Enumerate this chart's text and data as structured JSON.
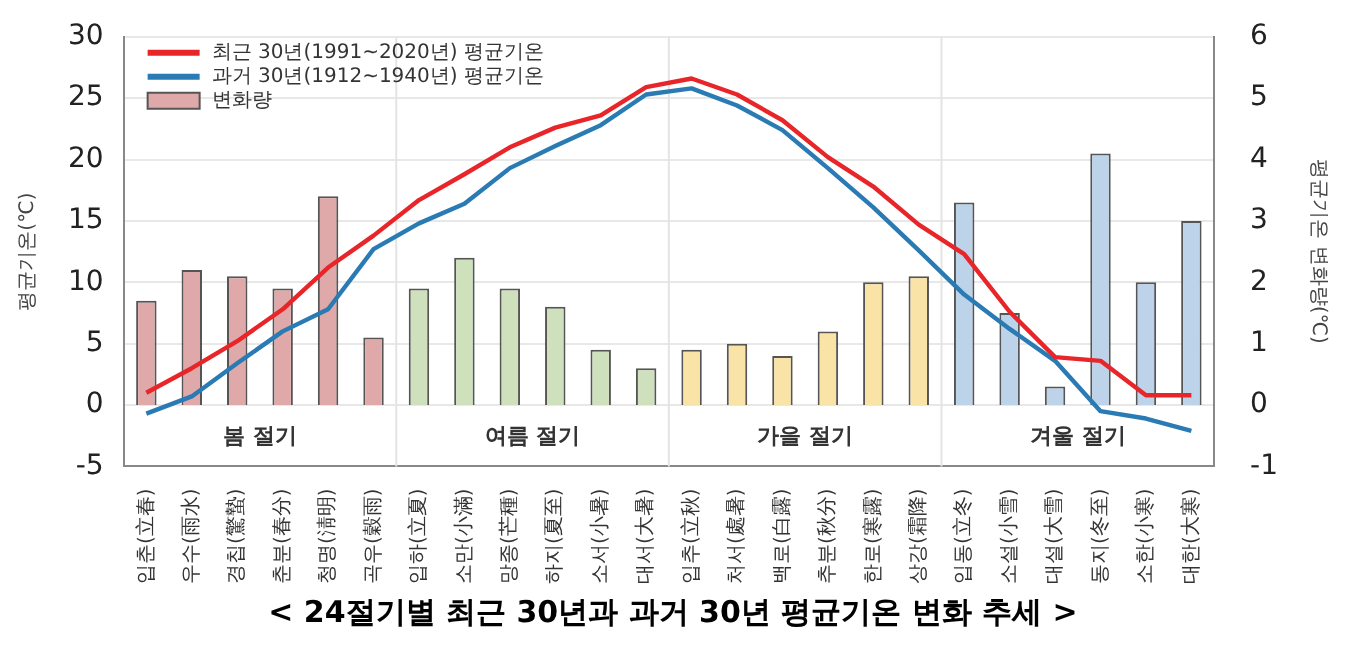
{
  "chart_data": {
    "type": "line",
    "title": "< 24절기별 최근 30년과 과거 30년 평균기온 변화 추세 >",
    "ylabel": "평균기온(℃)",
    "y2label": "평균기온 변화량(℃)",
    "categories": [
      "입춘(立春)",
      "우수(雨水)",
      "경칩(驚蟄)",
      "춘분(春分)",
      "청명(淸明)",
      "곡우(穀雨)",
      "입하(立夏)",
      "소만(小滿)",
      "망종(芒種)",
      "하지(夏至)",
      "소서(小暑)",
      "대서(大暑)",
      "입추(立秋)",
      "처서(處暑)",
      "백로(白露)",
      "추분(秋分)",
      "한로(寒露)",
      "상강(霜降)",
      "입동(立冬)",
      "소설(小雪)",
      "대설(大雪)",
      "동지(冬至)",
      "소한(小寒)",
      "대한(大寒)"
    ],
    "series": [
      {
        "name": "최근 30년(1991~2020년) 평균기온",
        "color": "#e8262a",
        "values": [
          1.0,
          3.0,
          5.2,
          7.8,
          11.2,
          13.8,
          16.7,
          18.8,
          21.0,
          22.6,
          23.6,
          25.9,
          26.6,
          25.3,
          23.2,
          20.2,
          17.8,
          14.7,
          12.3,
          7.6,
          3.9,
          3.6,
          0.8,
          0.8
        ]
      },
      {
        "name": "과거 30년(1912~1940년) 평균기온",
        "color": "#2a7bb4",
        "values": [
          -0.7,
          0.7,
          3.4,
          6.0,
          7.8,
          12.7,
          14.8,
          16.4,
          19.3,
          21.1,
          22.8,
          25.3,
          25.8,
          24.4,
          22.4,
          19.3,
          16.1,
          12.6,
          9.0,
          6.2,
          3.6,
          -0.5,
          -1.1,
          -2.1
        ]
      },
      {
        "name": "변화량",
        "type": "bar",
        "axis": "y2",
        "colors": [
          "#e0a9a9",
          "#e0a9a9",
          "#e0a9a9",
          "#e0a9a9",
          "#e0a9a9",
          "#e0a9a9",
          "#cfe0bd",
          "#cfe0bd",
          "#cfe0bd",
          "#cfe0bd",
          "#cfe0bd",
          "#cfe0bd",
          "#f9e3a6",
          "#f9e3a6",
          "#f9e3a6",
          "#f9e3a6",
          "#f9e3a6",
          "#f9e3a6",
          "#bcd3ea",
          "#bcd3ea",
          "#bcd3ea",
          "#bcd3ea",
          "#bcd3ea",
          "#bcd3ea"
        ],
        "values": [
          1.7,
          2.2,
          2.1,
          1.9,
          3.4,
          1.1,
          1.9,
          2.4,
          1.9,
          1.6,
          0.9,
          0.6,
          0.9,
          1.0,
          0.8,
          1.2,
          2.0,
          2.1,
          3.3,
          1.5,
          0.3,
          4.1,
          2.0,
          3.0
        ]
      }
    ],
    "ylim": [
      -5,
      30
    ],
    "yticks": [
      -5,
      0,
      5,
      10,
      15,
      20,
      25,
      30
    ],
    "y2lim": [
      -1,
      6
    ],
    "y2ticks": [
      -1,
      0,
      1,
      2,
      3,
      4,
      5,
      6
    ],
    "annotations": [
      "봄 절기",
      "여름 절기",
      "가을 절기",
      "겨울 절기"
    ],
    "grid": "y",
    "legend": "top left",
    "marker": "none",
    "line_style": "solid"
  }
}
